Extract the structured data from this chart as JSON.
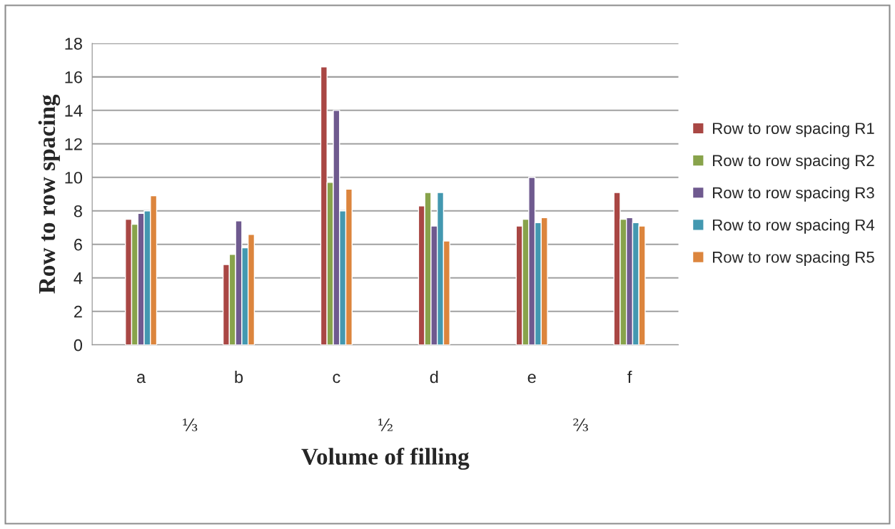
{
  "chart_data": {
    "type": "bar",
    "xlabel": "Volume of filling",
    "ylabel": "Row to row spacing",
    "categories": [
      "a",
      "b",
      "c",
      "d",
      "e",
      "f"
    ],
    "series": [
      {
        "name": "Row to row spacing R1",
        "color": "#a94744",
        "values": [
          7.5,
          4.8,
          16.6,
          8.3,
          7.1,
          9.1
        ]
      },
      {
        "name": "Row to row spacing R2",
        "color": "#88a34b",
        "values": [
          7.2,
          5.4,
          9.7,
          9.1,
          7.5,
          7.5
        ]
      },
      {
        "name": "Row to row spacing R3",
        "color": "#6f5a8f",
        "values": [
          7.85,
          7.4,
          14.0,
          7.1,
          10.0,
          7.6
        ]
      },
      {
        "name": "Row to row spacing R4",
        "color": "#4398b0",
        "values": [
          8.0,
          5.8,
          8.0,
          9.1,
          7.3,
          7.3
        ]
      },
      {
        "name": "Row to row spacing R5",
        "color": "#dc853d",
        "values": [
          8.9,
          6.6,
          9.3,
          6.2,
          7.6,
          7.1
        ]
      }
    ],
    "annotations": [
      "⅓",
      "½",
      "⅔"
    ],
    "ylim": [
      0,
      18
    ],
    "yticks": [
      0,
      2,
      4,
      6,
      8,
      10,
      12,
      14,
      16,
      18
    ],
    "grid": "y",
    "legend": "right"
  }
}
